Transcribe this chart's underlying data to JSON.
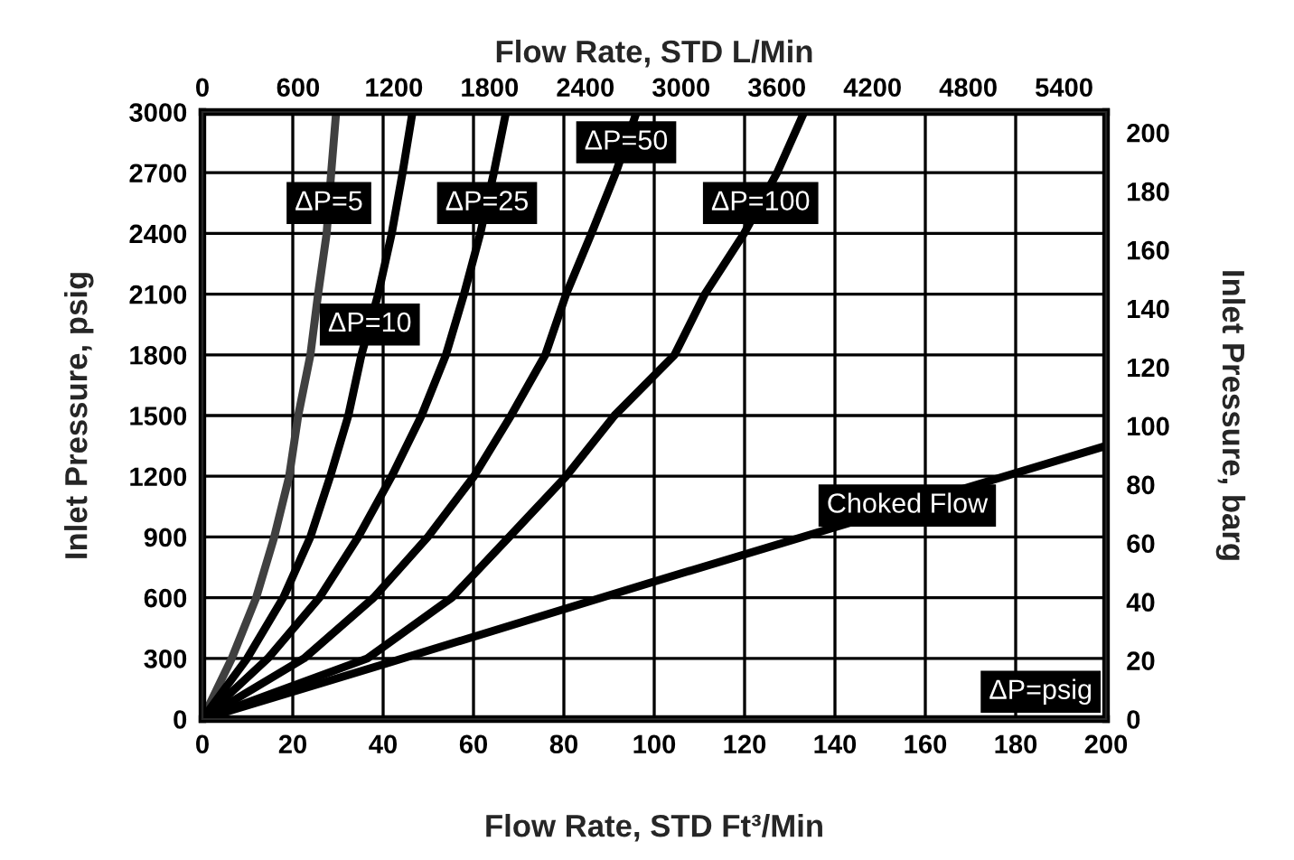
{
  "chart_data": {
    "type": "line",
    "xlabel": "Flow Rate, STD Ft³/Min",
    "ylabel": "Inlet Pressure, psig",
    "x2label": "Flow Rate, STD L/Min",
    "y2label": "Inlet Pressure, barg",
    "xlim": [
      0,
      200
    ],
    "xticks": [
      0,
      20,
      40,
      60,
      80,
      100,
      120,
      140,
      160,
      180,
      200
    ],
    "ylim": [
      0,
      3000
    ],
    "yticks": [
      0,
      300,
      600,
      900,
      1200,
      1500,
      1800,
      2100,
      2400,
      2700,
      3000
    ],
    "x2lim": [
      0,
      5663
    ],
    "x2ticks": [
      0,
      600,
      1200,
      1800,
      2400,
      3000,
      3600,
      4200,
      4800,
      5400
    ],
    "y2lim": [
      0,
      207
    ],
    "y2ticks": [
      0,
      20,
      40,
      60,
      80,
      100,
      120,
      140,
      160,
      180,
      200
    ],
    "grid": true,
    "legend": false,
    "line_style": "solid",
    "series": [
      {
        "name": "ΔP=5",
        "color": "#404040",
        "x": [
          0,
          6.5,
          11.9,
          15.9,
          19.2,
          21.2,
          23.9,
          25.6,
          27.5,
          28.5,
          29.6
        ],
        "values": [
          0,
          300,
          600,
          900,
          1200,
          1500,
          1800,
          2100,
          2400,
          2700,
          3000
        ]
      },
      {
        "name": "ΔP=10",
        "color": "#000000",
        "x": [
          0,
          9.9,
          17.9,
          23.9,
          28.3,
          32.3,
          35.2,
          38.9,
          41.9,
          44.3,
          46.5
        ],
        "values": [
          0,
          300,
          600,
          900,
          1200,
          1500,
          1800,
          2100,
          2400,
          2700,
          3000
        ]
      },
      {
        "name": "ΔP=25",
        "color": "#000000",
        "x": [
          0,
          14.5,
          25.9,
          34.5,
          41.9,
          48.5,
          53.9,
          57.9,
          61.5,
          64.5,
          67.2
        ],
        "values": [
          0,
          300,
          600,
          900,
          1200,
          1500,
          1800,
          2100,
          2400,
          2700,
          3000
        ]
      },
      {
        "name": "ΔP=50",
        "color": "#000000",
        "x": [
          0,
          22.5,
          37.9,
          49.9,
          60.1,
          68.3,
          75.9,
          80.5,
          86.1,
          91.5,
          96.1
        ],
        "values": [
          0,
          300,
          600,
          900,
          1200,
          1500,
          1800,
          2100,
          2400,
          2700,
          3000
        ]
      },
      {
        "name": "ΔP=100",
        "color": "#000000",
        "x": [
          0,
          36.5,
          55.2,
          67.9,
          80.5,
          91.2,
          104.5,
          111.2,
          119.9,
          127.2,
          133.2
        ],
        "values": [
          0,
          300,
          600,
          900,
          1200,
          1500,
          1800,
          2100,
          2400,
          2700,
          3000
        ]
      },
      {
        "name": "Choked Flow",
        "color": "#000000",
        "x": [
          0,
          40,
          100,
          200
        ],
        "values": [
          0,
          270,
          680,
          1350
        ]
      }
    ],
    "annotations": [
      "ΔP=psig"
    ]
  }
}
